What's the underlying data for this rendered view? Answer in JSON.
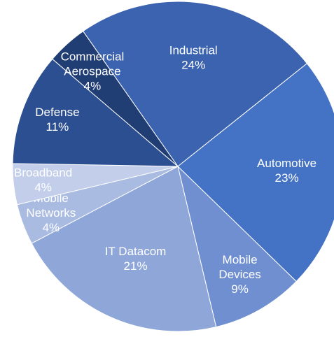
{
  "chart_data": {
    "type": "pie",
    "title": "",
    "slices": [
      {
        "label_lines": [
          "Industrial"
        ],
        "value_label": "24%",
        "value": 24,
        "color": "#3b63b0"
      },
      {
        "label_lines": [
          "Automotive"
        ],
        "value_label": "23%",
        "value": 23,
        "color": "#4472c4"
      },
      {
        "label_lines": [
          "Mobile",
          "Devices"
        ],
        "value_label": "9%",
        "value": 9,
        "color": "#6f8fd0"
      },
      {
        "label_lines": [
          "IT Datacom"
        ],
        "value_label": "21%",
        "value": 21,
        "color": "#8ea6d8"
      },
      {
        "label_lines": [
          "Mobile",
          "Networks"
        ],
        "value_label": "4%",
        "value": 4,
        "color": "#aabbe2"
      },
      {
        "label_lines": [
          "Broadband"
        ],
        "value_label": "4%",
        "value": 4,
        "color": "#c3cfea"
      },
      {
        "label_lines": [
          "Defense"
        ],
        "value_label": "11%",
        "value": 11,
        "color": "#2c4f91"
      },
      {
        "label_lines": [
          "Commercial",
          "Aerospace"
        ],
        "value_label": "4%",
        "value": 4,
        "color": "#203d74"
      }
    ],
    "legend": "none"
  }
}
